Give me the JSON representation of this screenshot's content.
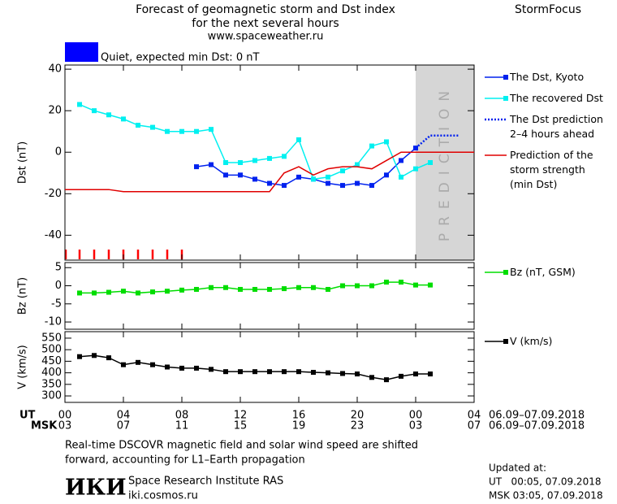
{
  "header": {
    "title": "Forecast of geomagnetic storm and Dst index",
    "subtitle": "for the next several hours",
    "url": "www.spaceweather.ru",
    "brand": "StormFocus"
  },
  "status": {
    "text": "Quiet, expected min Dst: 0 nT",
    "color": "#0000ff"
  },
  "chart_data": [
    {
      "type": "line",
      "ylabel": "Dst (nT)",
      "xlim": [
        0,
        28
      ],
      "ylim": [
        -52,
        42
      ],
      "yticks": [
        40,
        20,
        0,
        -20,
        -40
      ],
      "x": [
        0,
        1,
        2,
        3,
        4,
        5,
        6,
        7,
        8,
        9,
        10,
        11,
        12,
        13,
        14,
        15,
        16,
        17,
        18,
        19,
        20,
        21,
        22,
        23,
        24,
        25,
        26,
        27,
        28
      ],
      "prediction_band": {
        "range": [
          24,
          28
        ],
        "label": "PREDICTION"
      },
      "series": [
        {
          "name": "The Dst, Kyoto",
          "color": "#0022ee",
          "marker": true,
          "values": [
            null,
            null,
            null,
            null,
            null,
            null,
            null,
            null,
            null,
            -7,
            -6,
            -11,
            -11,
            -13,
            -15,
            -16,
            -12,
            -13,
            -15,
            -16,
            -15,
            -16,
            -11,
            -4,
            2,
            null,
            null,
            null,
            null
          ]
        },
        {
          "name": "The recovered Dst",
          "color": "#00f0f0",
          "marker": true,
          "values": [
            null,
            23,
            20,
            18,
            16,
            13,
            12,
            10,
            10,
            10,
            11,
            -5,
            -5,
            -4,
            -3,
            -2,
            6,
            -13,
            -12,
            -9,
            -6,
            3,
            5,
            -12,
            -8,
            -5,
            null,
            null,
            null
          ]
        },
        {
          "name": "The Dst prediction\n2–4 hours ahead",
          "color": "#0022ee",
          "dotted": true,
          "values": [
            null,
            null,
            null,
            null,
            null,
            null,
            null,
            null,
            null,
            null,
            null,
            null,
            null,
            null,
            null,
            null,
            null,
            null,
            null,
            null,
            null,
            null,
            null,
            null,
            2,
            8,
            8,
            8,
            null
          ]
        },
        {
          "name": "Prediction of the\nstorm strength\n(min Dst)",
          "color": "#e00000",
          "values": [
            -18,
            -18,
            -18,
            -18,
            -19,
            -19,
            -19,
            -19,
            -19,
            -19,
            -19,
            -19,
            -19,
            -19,
            -19,
            -10,
            -7,
            -11,
            -8,
            -7,
            -7,
            -8,
            -4,
            0,
            0,
            0,
            0,
            0,
            0
          ]
        }
      ]
    },
    {
      "type": "line",
      "ylabel": "Bz (nT)",
      "xlim": [
        0,
        28
      ],
      "ylim": [
        -12,
        6.4
      ],
      "yticks": [
        5,
        0,
        -5,
        -10
      ],
      "x": [
        0,
        1,
        2,
        3,
        4,
        5,
        6,
        7,
        8,
        9,
        10,
        11,
        12,
        13,
        14,
        15,
        16,
        17,
        18,
        19,
        20,
        21,
        22,
        23,
        24,
        25,
        26,
        27,
        28
      ],
      "series": [
        {
          "name": "Bz (nT, GSM)",
          "color": "#00dd00",
          "marker": true,
          "values": [
            null,
            -2,
            -2,
            -1.8,
            -1.5,
            -2,
            -1.7,
            -1.5,
            -1.2,
            -1,
            -0.5,
            -0.5,
            -1,
            -1,
            -1,
            -0.8,
            -0.5,
            -0.5,
            -1,
            0,
            0,
            0,
            1,
            1,
            0.2,
            0.2,
            null,
            null,
            null
          ]
        }
      ]
    },
    {
      "type": "line",
      "ylabel": "V (km/s)",
      "xlim": [
        0,
        28
      ],
      "ylim": [
        272,
        578
      ],
      "yticks": [
        550,
        500,
        450,
        400,
        350,
        300
      ],
      "x": [
        0,
        1,
        2,
        3,
        4,
        5,
        6,
        7,
        8,
        9,
        10,
        11,
        12,
        13,
        14,
        15,
        16,
        17,
        18,
        19,
        20,
        21,
        22,
        23,
        24,
        25,
        26,
        27,
        28
      ],
      "xlabel": "UT",
      "xlabel_msk": "MSK",
      "date_range": "06.09–07.09.2018",
      "date_range_msk": "06.09–07.09.2018",
      "xticks": [
        {
          "value": 0,
          "label": "00"
        },
        {
          "value": 4,
          "label": "04"
        },
        {
          "value": 8,
          "label": "08"
        },
        12,
        16,
        20,
        {
          "value": 24,
          "label": "00"
        },
        {
          "value": 28,
          "label": "04"
        }
      ],
      "xticks_msk": [
        {
          "value": 0,
          "label": "03"
        },
        {
          "value": 4,
          "label": "07"
        },
        {
          "value": 8,
          "label": "11"
        },
        {
          "value": 12,
          "label": "15"
        },
        {
          "value": 16,
          "label": "19"
        },
        {
          "value": 20,
          "label": "23"
        },
        {
          "value": 24,
          "label": "03"
        },
        {
          "value": 28,
          "label": "07"
        }
      ],
      "series": [
        {
          "name": "V (km/s)",
          "color": "#000000",
          "marker": true,
          "values": [
            null,
            470,
            475,
            465,
            435,
            445,
            435,
            425,
            420,
            420,
            415,
            405,
            405,
            405,
            405,
            405,
            405,
            402,
            400,
            397,
            395,
            380,
            370,
            385,
            395,
            395,
            null,
            null,
            null
          ]
        }
      ]
    }
  ],
  "footer": {
    "note_1": "Real-time DSCOVR magnetic field and solar wind speed are shifted",
    "note_2": "forward, accounting for L1–Earth propagation",
    "logo": "ИКИ",
    "institute": "Space Research Institute RAS",
    "site": "iki.cosmos.ru",
    "updated": "Updated at:",
    "updated_ut": "UT   00:05, 07.09.2018",
    "updated_msk": "MSK 03:05, 07.09.2018"
  }
}
